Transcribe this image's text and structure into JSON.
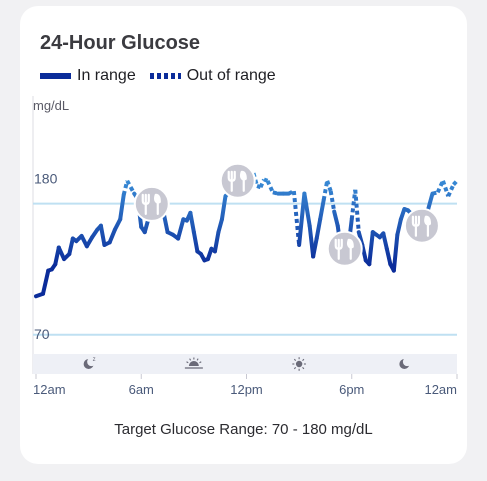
{
  "card": {
    "title": "24-Hour Glucose"
  },
  "legend": {
    "in_range_label": "In range",
    "out_of_range_label": "Out of range"
  },
  "colors": {
    "line_in_range_dark": "#0b2c9a",
    "line_in_range_light": "#3a8fd8",
    "target_line": "#bfe0f2",
    "band": "#eef0f6",
    "meal_marker": "#c8c8d2"
  },
  "chart_data": {
    "type": "line",
    "xlabel": "",
    "ylabel": "mg/dL",
    "ylim": [
      55,
      260
    ],
    "xlim": [
      0,
      24
    ],
    "target_range": [
      70,
      180
    ],
    "y_ticks": [
      {
        "value": 180,
        "label": "180"
      },
      {
        "value": 70,
        "label": "70"
      }
    ],
    "x_ticks": [
      {
        "value": 0,
        "label": "12am"
      },
      {
        "value": 6,
        "label": "6am"
      },
      {
        "value": 12,
        "label": "12pm"
      },
      {
        "value": 18,
        "label": "6pm"
      },
      {
        "value": 24,
        "label": "12am"
      }
    ],
    "time_of_day_icons": [
      {
        "value": 3,
        "icon": "moon-sleep-icon"
      },
      {
        "value": 9,
        "icon": "sunrise-icon"
      },
      {
        "value": 15,
        "icon": "sun-icon"
      },
      {
        "value": 21,
        "icon": "moon-icon"
      }
    ],
    "meal_events": [
      6.6,
      11.5,
      17.6,
      22.0
    ],
    "series": [
      {
        "x": [
          0.0,
          0.4,
          0.7,
          0.9,
          1.1,
          1.3,
          1.6,
          1.9,
          2.1,
          2.3,
          2.6,
          2.9,
          3.2,
          3.5,
          3.7,
          3.9,
          4.2,
          4.5,
          4.8,
          5.0,
          5.2,
          5.4,
          5.6,
          5.8,
          6.0,
          6.2,
          6.4,
          6.6,
          6.9,
          7.2,
          7.5,
          7.8,
          8.1,
          8.4,
          8.6,
          8.8,
          9.0,
          9.2,
          9.4,
          9.6,
          9.8,
          10.0,
          10.2,
          10.4,
          10.6,
          10.8,
          11.0,
          11.2,
          11.5,
          11.8,
          12.0,
          12.2,
          12.4,
          12.6,
          12.8,
          13.0,
          13.2,
          13.5,
          13.8,
          14.1,
          14.4,
          14.7,
          15.0,
          15.3,
          15.6,
          15.8,
          16.0,
          16.2,
          16.4,
          16.6,
          16.8,
          17.0,
          17.2,
          17.5,
          17.8,
          18.0,
          18.2,
          18.4,
          18.6,
          18.8,
          19.0,
          19.2,
          19.4,
          19.6,
          19.8,
          20.0,
          20.2,
          20.4,
          20.6,
          20.8,
          21.0,
          21.2,
          21.5,
          21.8,
          22.0,
          22.3,
          22.6,
          22.9,
          23.2,
          23.5,
          23.8,
          24.0
        ],
        "y": [
          100,
          102,
          120,
          121,
          125,
          138,
          129,
          133,
          145,
          143,
          147,
          139,
          146,
          152,
          155,
          140,
          142,
          152,
          160,
          179,
          190,
          185,
          180,
          176,
          154,
          150,
          160,
          172,
          172,
          170,
          150,
          148,
          145,
          160,
          159,
          165,
          150,
          135,
          133,
          128,
          129,
          137,
          135,
          150,
          160,
          178,
          181,
          178,
          190,
          190,
          188,
          189,
          196,
          186,
          185,
          191,
          190,
          181,
          180,
          180,
          180,
          182,
          140,
          180,
          155,
          131,
          145,
          160,
          175,
          190,
          182,
          166,
          155,
          125,
          137,
          160,
          183,
          150,
          140,
          128,
          125,
          150,
          148,
          146,
          149,
          137,
          125,
          120,
          148,
          160,
          168,
          167,
          163,
          160,
          155,
          165,
          180,
          181,
          190,
          178,
          187,
          190
        ]
      }
    ]
  }
}
